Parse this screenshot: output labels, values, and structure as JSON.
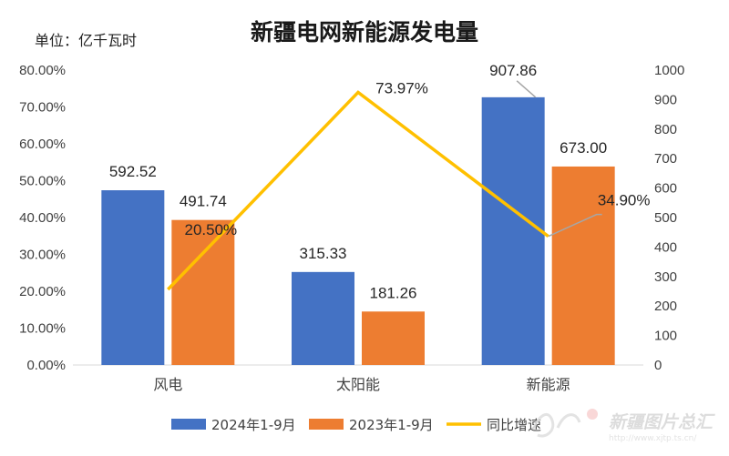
{
  "chart_data": {
    "type": "bar",
    "title": "新疆电网新能源发电量",
    "unit_label": "单位：亿千瓦时",
    "categories": [
      "风电",
      "太阳能",
      "新能源"
    ],
    "series": [
      {
        "name": "2024年1-9月",
        "type": "bar",
        "axis": "right",
        "color": "#4472C4",
        "values": [
          592.52,
          315.33,
          907.86
        ],
        "labels": [
          "592.52",
          "315.33",
          "907.86"
        ]
      },
      {
        "name": "2023年1-9月",
        "type": "bar",
        "axis": "right",
        "color": "#ED7D31",
        "values": [
          491.74,
          181.26,
          673.0
        ],
        "labels": [
          "491.74",
          "181.26",
          "673.00"
        ]
      },
      {
        "name": "同比增速",
        "type": "line",
        "axis": "left",
        "color": "#FFC000",
        "values": [
          20.5,
          73.97,
          34.9
        ],
        "labels": [
          "20.50%",
          "73.97%",
          "34.90%"
        ]
      }
    ],
    "left_axis": {
      "min": 0,
      "max": 80,
      "step": 10,
      "ticks": [
        "0.00%",
        "10.00%",
        "20.00%",
        "30.00%",
        "40.00%",
        "50.00%",
        "60.00%",
        "70.00%",
        "80.00%"
      ]
    },
    "right_axis": {
      "min": 0,
      "max": 1000,
      "step": 100,
      "ticks": [
        "0",
        "100",
        "200",
        "300",
        "400",
        "500",
        "600",
        "700",
        "800",
        "900",
        "1000"
      ]
    },
    "legend_position": "bottom",
    "grid": false
  },
  "watermark": {
    "text": "新疆图片总汇",
    "url": "http://www.xjtp.ts.cn/"
  }
}
